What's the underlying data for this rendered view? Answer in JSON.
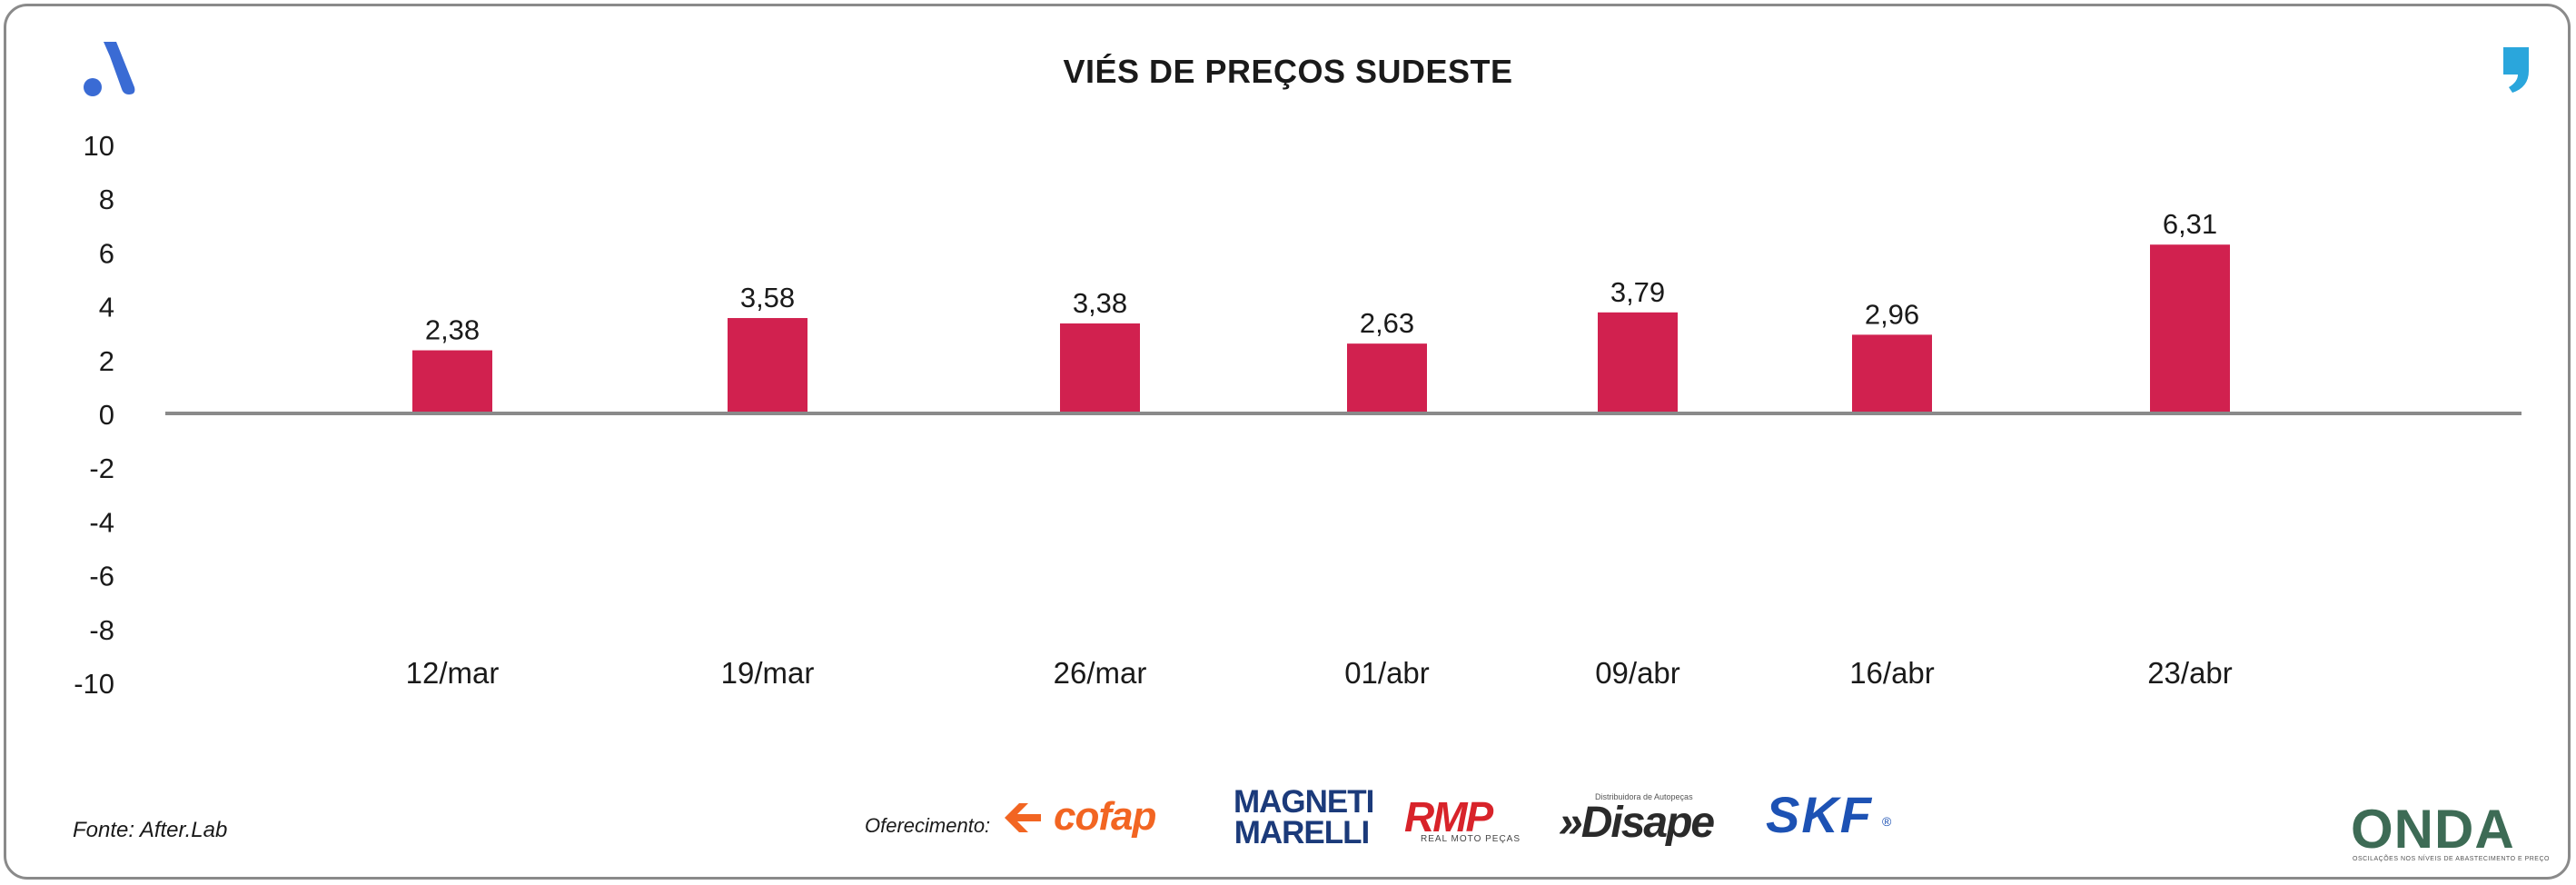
{
  "header": {
    "title": "VIÉS DE PREÇOS SUDESTE",
    "left_logo_icon": "after-lab-a-logo-icon",
    "right_logo_icon": "quote-comma-logo-icon"
  },
  "chart_data": {
    "type": "bar",
    "title": "VIÉS DE PREÇOS SUDESTE",
    "xlabel": "",
    "ylabel": "",
    "categories": [
      "12/mar",
      "19/mar",
      "26/mar",
      "01/abr",
      "09/abr",
      "16/abr",
      "23/abr"
    ],
    "values": [
      2.38,
      3.58,
      3.38,
      2.63,
      3.79,
      2.96,
      6.31
    ],
    "value_labels": [
      "2,38",
      "3,58",
      "3,38",
      "2,63",
      "3,79",
      "2,96",
      "6,31"
    ],
    "ylim": [
      -10,
      10
    ],
    "yticks": [
      10,
      8,
      6,
      4,
      2,
      0,
      -2,
      -4,
      -6,
      -8,
      -10
    ],
    "bar_color": "#d1214f",
    "grid": false,
    "legend": "none"
  },
  "footer": {
    "source": "Fonte: After.Lab",
    "sponsor_label": "Oferecimento:",
    "sponsors": {
      "cofap": "cofap",
      "magneti_line1": "MAGNETI",
      "magneti_line2": "MARELLI",
      "rmp": "RMP",
      "rmp_sub": "REAL MOTO PEÇAS",
      "disape_sub": "Distribuidora de Autopeças",
      "disape": "»Disape",
      "skf": "SKF",
      "skf_reg": "®",
      "onda": "ONDA",
      "onda_sub": "OSCILAÇÕES NOS NÍVEIS DE ABASTECIMENTO E PREÇO"
    }
  },
  "colors": {
    "bar": "#d1214f",
    "axis": "#8a8a8a",
    "brand_blue": "#3a6bd4",
    "cofap_orange": "#f26522"
  }
}
